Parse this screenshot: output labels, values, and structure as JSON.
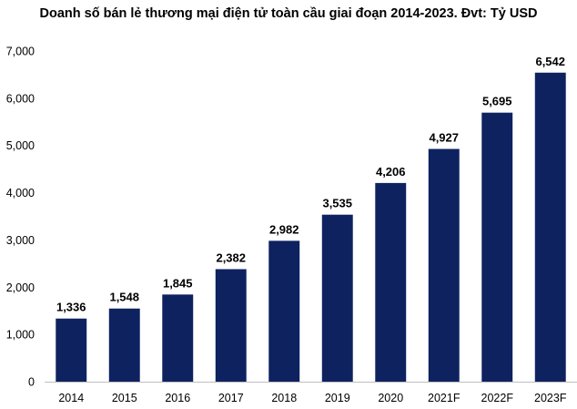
{
  "chart_data": {
    "type": "bar",
    "title": "Doanh số bán lẻ thương mại điện tử toàn cầu giai đoạn 2014-2023. Đvt: Tỷ USD",
    "xlabel": "",
    "ylabel": "",
    "categories": [
      "2014",
      "2015",
      "2016",
      "2017",
      "2018",
      "2019",
      "2020",
      "2021F",
      "2022F",
      "2023F"
    ],
    "values": [
      1336,
      1548,
      1845,
      2382,
      2982,
      3535,
      4206,
      4927,
      5695,
      6542
    ],
    "value_labels": [
      "1,336",
      "1,548",
      "1,845",
      "2,382",
      "2,982",
      "3,535",
      "4,206",
      "4,927",
      "5,695",
      "6,542"
    ],
    "ylim": [
      0,
      7000
    ],
    "yticks": [
      0,
      1000,
      2000,
      3000,
      4000,
      5000,
      6000,
      7000
    ],
    "ytick_labels": [
      "0",
      "1,000",
      "2,000",
      "3,000",
      "4,000",
      "5,000",
      "6,000",
      "7,000"
    ],
    "grid": false,
    "legend": "none",
    "bar_color": "#0e2260",
    "axis_color": "#bfbfbf"
  }
}
